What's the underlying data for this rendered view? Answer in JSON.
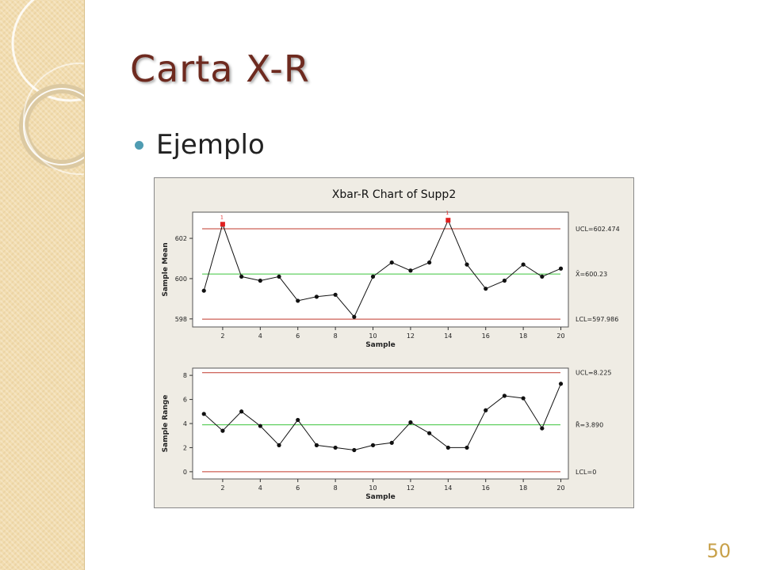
{
  "slide": {
    "title": "Carta X-R",
    "bullet": "Ejemplo",
    "page_number": "50"
  },
  "colors": {
    "title": "#6e2a1f",
    "bullet": "#4f9cb2",
    "control_limit": "#c0392b",
    "center_line": "#3cc43c",
    "out_of_control": "#e02020",
    "chart_background": "#efece4",
    "page_number": "#c8a14a"
  },
  "chart_data": [
    {
      "type": "line",
      "title": "Xbar-R Chart of Supp2",
      "xlabel": "Sample",
      "ylabel": "Sample Mean",
      "x": [
        1,
        2,
        3,
        4,
        5,
        6,
        7,
        8,
        9,
        10,
        11,
        12,
        13,
        14,
        15,
        16,
        17,
        18,
        19,
        20
      ],
      "values": [
        599.4,
        602.7,
        600.1,
        599.9,
        600.1,
        598.9,
        599.1,
        599.2,
        598.1,
        600.1,
        600.8,
        600.4,
        600.8,
        602.9,
        600.7,
        599.5,
        599.9,
        600.7,
        600.1,
        600.5
      ],
      "xlim": [
        0.4,
        20.4
      ],
      "ylim": [
        597.6,
        603.3
      ],
      "x_ticks": [
        "2",
        "4",
        "6",
        "8",
        "10",
        "12",
        "14",
        "16",
        "18",
        "20"
      ],
      "x_tick_values": [
        2,
        4,
        6,
        8,
        10,
        12,
        14,
        16,
        18,
        20
      ],
      "y_ticks": [
        "598",
        "600",
        "602"
      ],
      "y_tick_values": [
        598,
        600,
        602
      ],
      "ucl": 602.474,
      "center": 600.23,
      "lcl": 597.986,
      "ucl_label": "UCL=602.474",
      "center_label": "X̄=600.23",
      "lcl_label": "LCL=597.986",
      "out_of_control": [
        2,
        14
      ],
      "flag_label": "1",
      "grid": false
    },
    {
      "type": "line",
      "xlabel": "Sample",
      "ylabel": "Sample Range",
      "x": [
        1,
        2,
        3,
        4,
        5,
        6,
        7,
        8,
        9,
        10,
        11,
        12,
        13,
        14,
        15,
        16,
        17,
        18,
        19,
        20
      ],
      "values": [
        4.8,
        3.4,
        5.0,
        3.8,
        2.2,
        4.3,
        2.2,
        2.0,
        1.8,
        2.2,
        2.4,
        4.1,
        3.2,
        2.0,
        2.0,
        5.1,
        6.3,
        6.1,
        3.6,
        7.3
      ],
      "xlim": [
        0.4,
        20.4
      ],
      "ylim": [
        -0.6,
        8.6
      ],
      "x_ticks": [
        "2",
        "4",
        "6",
        "8",
        "10",
        "12",
        "14",
        "16",
        "18",
        "20"
      ],
      "x_tick_values": [
        2,
        4,
        6,
        8,
        10,
        12,
        14,
        16,
        18,
        20
      ],
      "y_ticks": [
        "0",
        "2",
        "4",
        "6",
        "8"
      ],
      "y_tick_values": [
        0,
        2,
        4,
        6,
        8
      ],
      "ucl": 8.225,
      "center": 3.89,
      "lcl": 0,
      "ucl_label": "UCL=8.225",
      "center_label": "R̄=3.890",
      "lcl_label": "LCL=0",
      "out_of_control": [],
      "grid": false
    }
  ]
}
